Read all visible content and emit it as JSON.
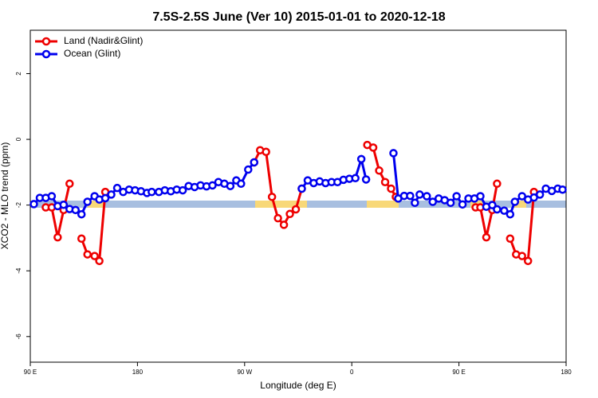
{
  "chart_data": {
    "type": "line",
    "title": "7.5S-2.5S June (Ver 10)   2015-01-01 to 2020-12-18",
    "x_label": "Longitude (deg E)",
    "y_label": "XCO2 - MLO trend (ppm)",
    "xlim": [
      90,
      540
    ],
    "xticks": [
      {
        "value": 90,
        "label": "90 E"
      },
      {
        "value": 180,
        "label": "180"
      },
      {
        "value": 270,
        "label": "90 W"
      },
      {
        "value": 360,
        "label": "0"
      },
      {
        "value": 450,
        "label": "90 E"
      },
      {
        "value": 540,
        "label": "180"
      }
    ],
    "ylim": [
      -6.78,
      3.32
    ],
    "yticks": [
      -6,
      -4,
      -2,
      0,
      2
    ],
    "legend": "top-left",
    "series": [
      {
        "name": "Land (Nadir&Glint)",
        "color": "#ee0000",
        "x": [
          103,
          108,
          113,
          118,
          123,
          null,
          133,
          138,
          144,
          148,
          153,
          null,
          278,
          283,
          288,
          293,
          298,
          303,
          308,
          313,
          318,
          null,
          373,
          378,
          383,
          388,
          393,
          397,
          null,
          464,
          468,
          473,
          478,
          482,
          null,
          493,
          498,
          503,
          508,
          513
        ],
        "values": [
          -2.07,
          -2.07,
          -2.98,
          -2.15,
          -1.35,
          null,
          -3.02,
          -3.5,
          -3.55,
          -3.7,
          -1.6,
          null,
          -0.7,
          -0.33,
          -0.38,
          -1.75,
          -2.4,
          -2.6,
          -2.27,
          -2.13,
          -1.5,
          null,
          -0.17,
          -0.25,
          -0.95,
          -1.3,
          -1.5,
          -1.75,
          null,
          -2.07,
          -2.07,
          -2.98,
          -2.15,
          -1.35,
          null,
          -3.02,
          -3.5,
          -3.55,
          -3.7,
          -1.6
        ]
      },
      {
        "name": "Ocean (Glint)",
        "color": "#0000ee",
        "x": [
          93,
          98,
          103,
          108,
          113,
          118,
          123,
          128,
          133,
          138,
          144,
          148,
          153,
          158,
          163,
          168,
          173,
          178,
          183,
          188,
          192,
          198,
          203,
          208,
          213,
          218,
          223,
          228,
          233,
          238,
          243,
          248,
          253,
          258,
          263,
          267,
          273,
          278,
          null,
          318,
          323,
          328,
          333,
          338,
          343,
          348,
          353,
          358,
          363,
          368,
          372,
          null,
          395,
          399,
          404,
          409,
          413,
          417,
          423,
          428,
          433,
          438,
          443,
          448,
          453,
          458,
          463,
          468,
          473,
          478,
          482,
          488,
          493,
          497,
          503,
          508,
          513,
          518,
          523,
          528,
          533,
          537
        ],
        "values": [
          -1.97,
          -1.78,
          -1.78,
          -1.73,
          -2.03,
          -1.99,
          -2.12,
          -2.15,
          -2.28,
          -1.9,
          -1.73,
          -1.83,
          -1.79,
          -1.68,
          -1.48,
          -1.6,
          -1.53,
          -1.55,
          -1.58,
          -1.63,
          -1.6,
          -1.6,
          -1.55,
          -1.58,
          -1.53,
          -1.55,
          -1.42,
          -1.45,
          -1.4,
          -1.43,
          -1.4,
          -1.3,
          -1.35,
          -1.42,
          -1.25,
          -1.35,
          -0.92,
          -0.7,
          null,
          -1.5,
          -1.25,
          -1.33,
          -1.28,
          -1.33,
          -1.3,
          -1.3,
          -1.23,
          -1.2,
          -1.18,
          -0.6,
          -1.22,
          null,
          -0.42,
          -1.8,
          -1.72,
          -1.72,
          -1.93,
          -1.68,
          -1.73,
          -1.9,
          -1.8,
          -1.85,
          -1.93,
          -1.73,
          -1.98,
          -1.8,
          -1.8,
          -1.73,
          -2.05,
          -2.0,
          -2.13,
          -2.17,
          -2.28,
          -1.9,
          -1.73,
          -1.83,
          -1.77,
          -1.68,
          -1.5,
          -1.57,
          -1.5,
          -1.53
        ]
      }
    ]
  }
}
